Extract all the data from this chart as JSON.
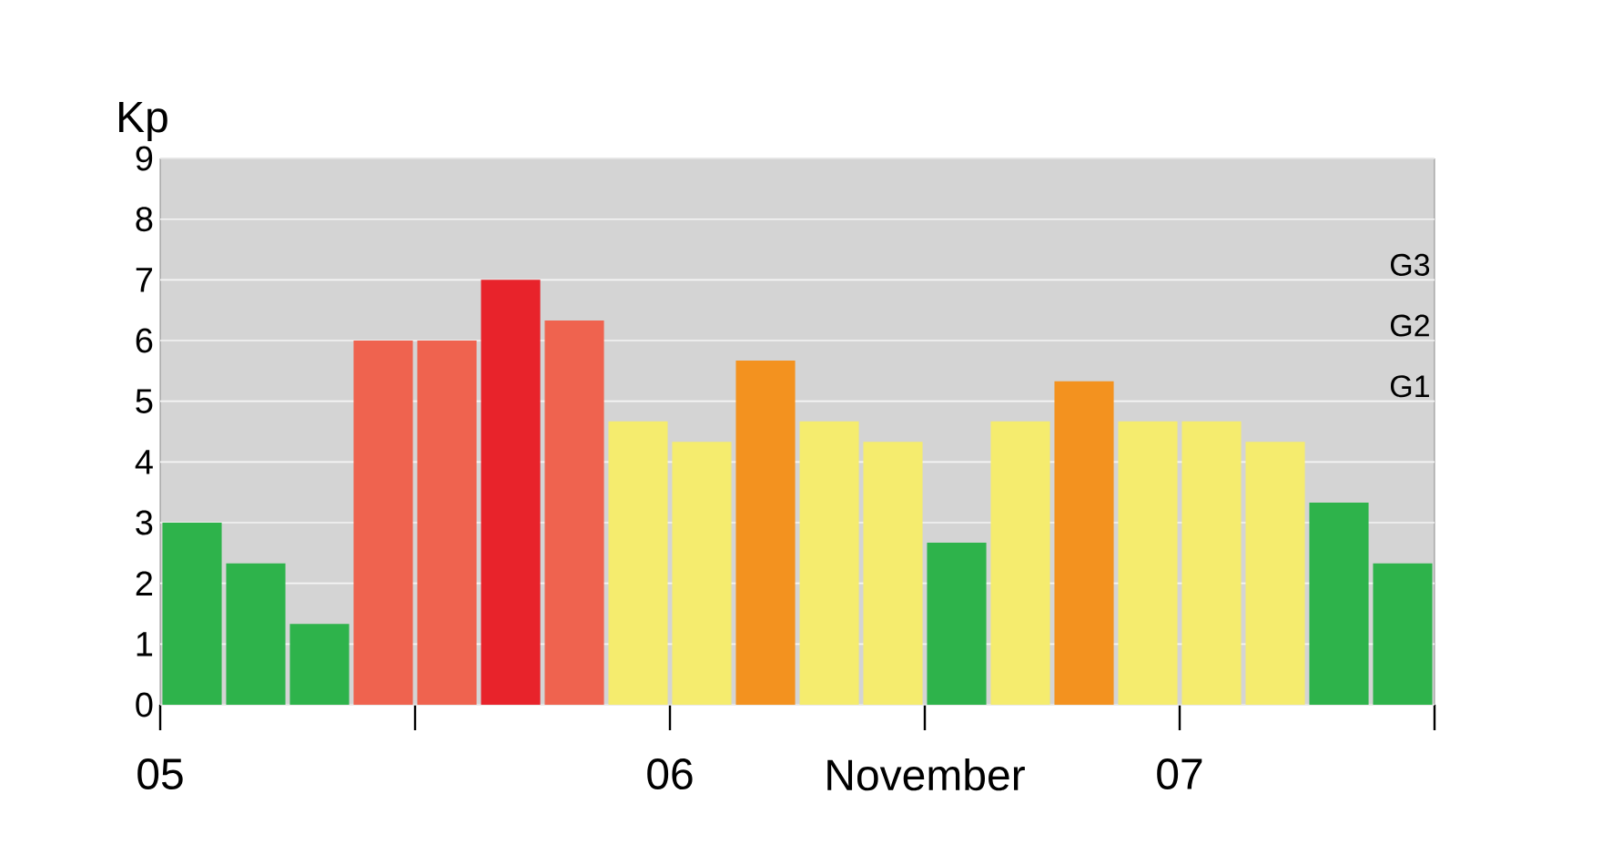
{
  "chart_data": {
    "type": "bar",
    "ylabel": "Kp",
    "categories": [
      null,
      null,
      null,
      null,
      null,
      null,
      null,
      null,
      null,
      null,
      null,
      null,
      null,
      null,
      null,
      null,
      null,
      null,
      null,
      null
    ],
    "values": [
      3,
      2.33,
      1.33,
      6,
      6,
      7,
      6.33,
      4.67,
      4.33,
      5.67,
      4.67,
      4.33,
      2.67,
      4.67,
      5.33,
      4.67,
      4.67,
      4.33,
      3.33,
      2.33
    ],
    "colors": [
      "#2eb34b",
      "#2eb34b",
      "#2eb34b",
      "#ef634f",
      "#ef634f",
      "#e8232b",
      "#ef634f",
      "#f5ec6e",
      "#f5ec6e",
      "#f3921f",
      "#f5ec6e",
      "#f5ec6e",
      "#2eb34b",
      "#f5ec6e",
      "#f3921f",
      "#f5ec6e",
      "#f5ec6e",
      "#f5ec6e",
      "#2eb34b",
      "#2eb34b"
    ],
    "ylim": [
      0,
      9
    ],
    "yticks": [
      0,
      1,
      2,
      3,
      4,
      5,
      6,
      7,
      8,
      9
    ],
    "grid": "y",
    "annotations": [
      "05",
      "06",
      "November",
      "07",
      "G3",
      "G2",
      "G1"
    ]
  }
}
